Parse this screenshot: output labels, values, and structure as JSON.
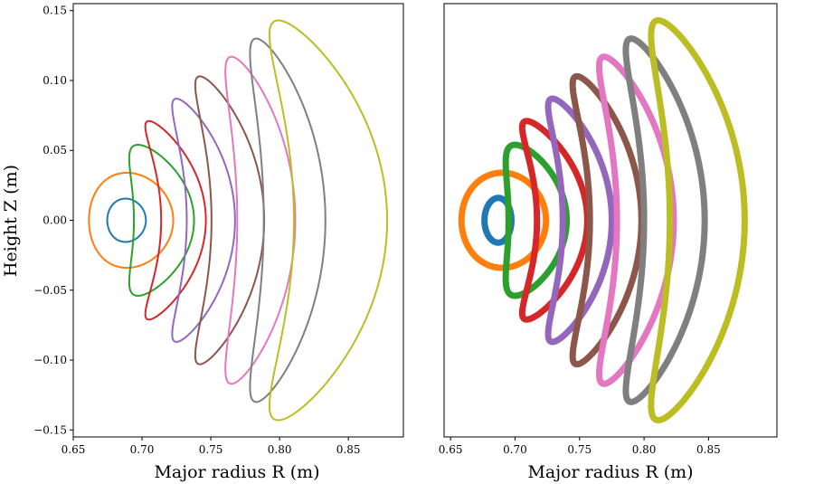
{
  "chart_data": [
    {
      "type": "line",
      "panel": "left",
      "title": "",
      "xlabel": "Major radius R (m)",
      "ylabel": "Height Z (m)",
      "xlim": [
        0.65,
        0.89
      ],
      "ylim": [
        -0.155,
        0.155
      ],
      "xticks": [
        "0.65",
        "0.70",
        "0.75",
        "0.80",
        "0.85"
      ],
      "yticks": [
        "−0.15",
        "−0.10",
        "−0.05",
        "0.00",
        "0.05",
        "0.10",
        "0.15"
      ],
      "grid": false,
      "legend": "none",
      "marker_style": "thin-line",
      "series": [
        {
          "color": "#1f77b4",
          "inner_r": 0.6747,
          "outer_r": 0.7028,
          "z_max": 0.0155,
          "r_at_zmax": 0.688
        },
        {
          "color": "#ff7f0e",
          "inner_r": 0.6614,
          "outer_r": 0.7227,
          "z_max": 0.034,
          "r_at_zmax": 0.689
        },
        {
          "color": "#2ca02c",
          "inner_r": 0.6941,
          "outer_r": 0.7378,
          "z_max": 0.054,
          "r_at_zmax": 0.697
        },
        {
          "color": "#d62728",
          "inner_r": 0.7139,
          "outer_r": 0.7464,
          "z_max": 0.071,
          "r_at_zmax": 0.705
        },
        {
          "color": "#9467bd",
          "inner_r": 0.7325,
          "outer_r": 0.7676,
          "z_max": 0.087,
          "r_at_zmax": 0.725
        },
        {
          "color": "#8c564b",
          "inner_r": 0.7505,
          "outer_r": 0.7888,
          "z_max": 0.103,
          "r_at_zmax": 0.742
        },
        {
          "color": "#e377c2",
          "inner_r": 0.7692,
          "outer_r": 0.8114,
          "z_max": 0.117,
          "r_at_zmax": 0.765
        },
        {
          "color": "#7f7f7f",
          "inner_r": 0.7885,
          "outer_r": 0.8333,
          "z_max": 0.13,
          "r_at_zmax": 0.783
        },
        {
          "color": "#bcbd22",
          "inner_r": 0.8104,
          "outer_r": 0.8782,
          "z_max": 0.143,
          "r_at_zmax": 0.799
        }
      ]
    },
    {
      "type": "scatter",
      "panel": "right",
      "title": "",
      "xlabel": "Major radius R (m)",
      "ylabel": "",
      "xlim": [
        0.645,
        0.903
      ],
      "ylim": [
        -0.155,
        0.155
      ],
      "xticks": [
        "0.65",
        "0.70",
        "0.75",
        "0.80",
        "0.85"
      ],
      "yticks": [],
      "grid": false,
      "legend": "none",
      "marker_style": "dense-thick-band",
      "series": [
        {
          "color": "#1f77b4",
          "inner_r": 0.6763,
          "outer_r": 0.6972,
          "z_max": 0.016,
          "r_at_zmax": 0.687
        },
        {
          "color": "#ff7f0e",
          "inner_r": 0.6585,
          "outer_r": 0.724,
          "z_max": 0.034,
          "r_at_zmax": 0.69
        },
        {
          "color": "#2ca02c",
          "inner_r": 0.695,
          "outer_r": 0.74,
          "z_max": 0.054,
          "r_at_zmax": 0.7
        },
        {
          "color": "#d62728",
          "inner_r": 0.717,
          "outer_r": 0.756,
          "z_max": 0.071,
          "r_at_zmax": 0.709
        },
        {
          "color": "#9467bd",
          "inner_r": 0.737,
          "outer_r": 0.775,
          "z_max": 0.087,
          "r_at_zmax": 0.729
        },
        {
          "color": "#8c564b",
          "inner_r": 0.758,
          "outer_r": 0.798,
          "z_max": 0.103,
          "r_at_zmax": 0.748
        },
        {
          "color": "#e377c2",
          "inner_r": 0.779,
          "outer_r": 0.823,
          "z_max": 0.117,
          "r_at_zmax": 0.769
        },
        {
          "color": "#7f7f7f",
          "inner_r": 0.8,
          "outer_r": 0.847,
          "z_max": 0.13,
          "r_at_zmax": 0.79
        },
        {
          "color": "#bcbd22",
          "inner_r": 0.82,
          "outer_r": 0.878,
          "z_max": 0.143,
          "r_at_zmax": 0.811
        }
      ]
    }
  ]
}
